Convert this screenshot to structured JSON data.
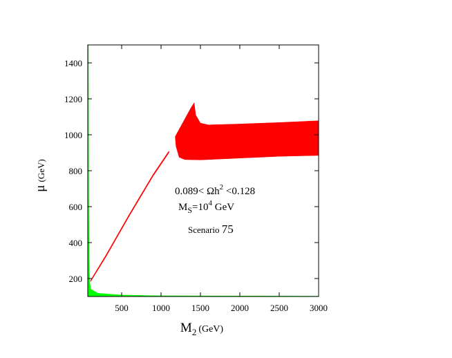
{
  "chart_data": {
    "type": "area",
    "title": "",
    "xlabel": {
      "main": "M",
      "sub": "2",
      "unit": "(GeV)"
    },
    "ylabel": {
      "main": "μ",
      "unit": "(GeV)"
    },
    "xlim": [
      70,
      3000
    ],
    "ylim": [
      100,
      1500
    ],
    "xticks": [
      500,
      1000,
      1500,
      2000,
      2500,
      3000
    ],
    "yticks": [
      200,
      400,
      600,
      800,
      1000,
      1200,
      1400
    ],
    "xtick_labels": [
      "500",
      "1000",
      "1500",
      "2000",
      "2500",
      "3000"
    ],
    "ytick_labels": [
      "200",
      "400",
      "600",
      "800",
      "1000",
      "1200",
      "1400"
    ],
    "grid": false,
    "annotations": {
      "line1": {
        "prefix": "0.089< Ωh",
        "sup": "2",
        "suffix": " <0.128"
      },
      "line2": {
        "prefix": "M",
        "sub": "S",
        "mid": "=10",
        "sup": "4",
        "suffix": " GeV"
      },
      "line3": {
        "small": "Scenario ",
        "large": "75"
      }
    },
    "series": [
      {
        "color": "#ff0000",
        "kind": "band",
        "upper": [
          [
            105,
            190
          ],
          [
            300,
            330
          ],
          [
            600,
            560
          ],
          [
            900,
            780
          ],
          [
            1100,
            910
          ]
        ],
        "lower": [
          [
            105,
            182
          ],
          [
            300,
            320
          ],
          [
            600,
            550
          ],
          [
            900,
            770
          ],
          [
            1100,
            900
          ]
        ]
      },
      {
        "color": "#ff0000",
        "kind": "band",
        "upper": [
          [
            1180,
            990
          ],
          [
            1280,
            1070
          ],
          [
            1380,
            1150
          ],
          [
            1420,
            1178
          ],
          [
            1440,
            1110
          ],
          [
            1500,
            1065
          ],
          [
            1600,
            1055
          ],
          [
            2000,
            1060
          ],
          [
            2500,
            1068
          ],
          [
            3000,
            1078
          ]
        ],
        "lower": [
          [
            1180,
            990
          ],
          [
            1190,
            935
          ],
          [
            1230,
            875
          ],
          [
            1300,
            862
          ],
          [
            1500,
            860
          ],
          [
            2000,
            870
          ],
          [
            2500,
            880
          ],
          [
            3000,
            885
          ]
        ]
      },
      {
        "color": "#00ff00",
        "kind": "band",
        "upper": [
          [
            70,
            1500
          ],
          [
            78,
            1500
          ],
          [
            82,
            650
          ],
          [
            86,
            320
          ],
          [
            95,
            180
          ],
          [
            110,
            140
          ],
          [
            200,
            118
          ],
          [
            500,
            108
          ],
          [
            1000,
            104
          ],
          [
            3000,
            102
          ]
        ],
        "lower": [
          [
            70,
            100
          ],
          [
            3000,
            100
          ]
        ]
      }
    ]
  }
}
